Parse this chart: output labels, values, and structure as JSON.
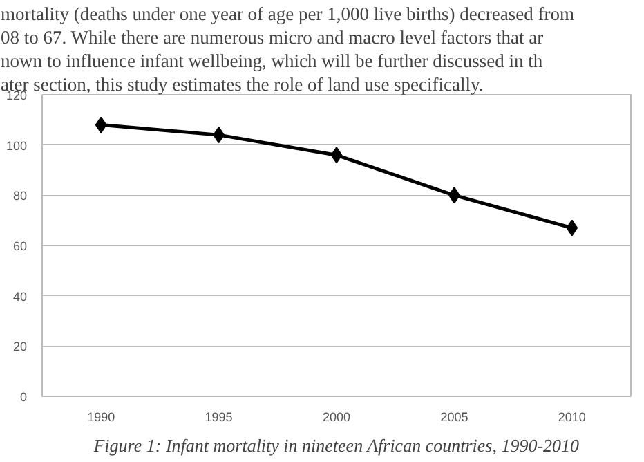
{
  "chart_data": {
    "type": "line",
    "categories": [
      "1990",
      "1995",
      "2000",
      "2005",
      "2010"
    ],
    "series": [
      {
        "color": "#000000",
        "values": [
          108,
          104,
          96,
          80,
          67
        ]
      }
    ],
    "ylim": [
      0,
      120
    ],
    "yticks": [
      0,
      20,
      40,
      60,
      80,
      100,
      120
    ],
    "grid": "y",
    "marker": "diamond",
    "line_style": "solid",
    "annotations": [
      "mortality (deaths under one year of age per 1,000 live births) decreased from",
      "08 to 67. While there are numerous micro and macro level factors that ar",
      "nown to influence infant wellbeing, which will be further discussed in th",
      "ater section, this study estimates the role of land use specifically.",
      "Figure 1: Infant mortality in nineteen African countries, 1990-2010"
    ]
  }
}
